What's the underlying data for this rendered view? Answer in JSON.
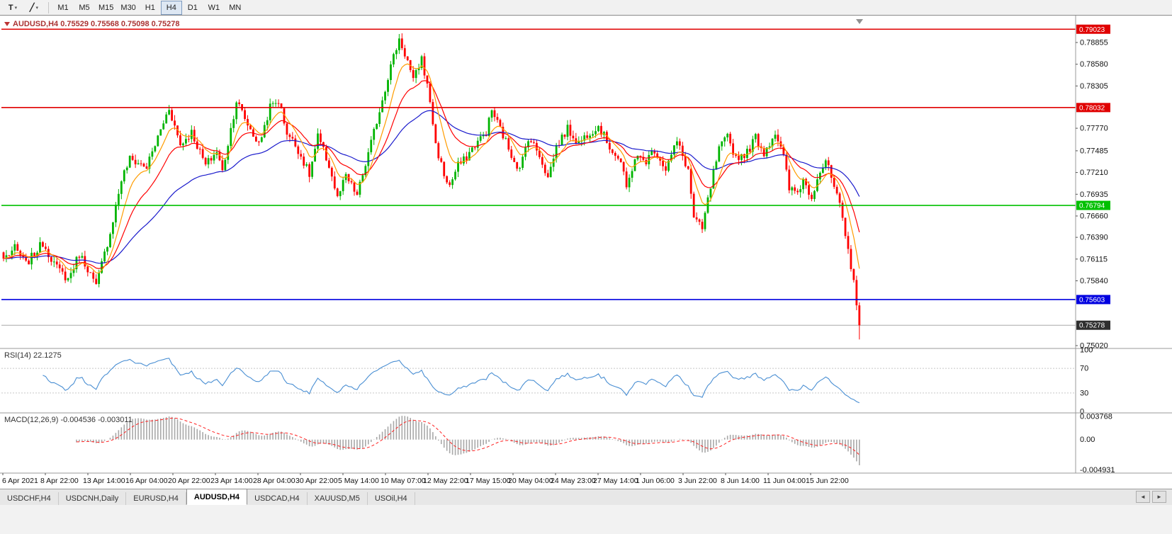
{
  "toolbar": {
    "tools": [
      {
        "id": "text-tool",
        "glyph": "T"
      },
      {
        "id": "drawing-tool",
        "glyph": "╱"
      }
    ],
    "caret": "▾",
    "timeframes": [
      "M1",
      "M5",
      "M15",
      "M30",
      "H1",
      "H4",
      "D1",
      "W1",
      "MN"
    ],
    "active_timeframe": "H4"
  },
  "tabs": {
    "items": [
      "USDCHF,H4",
      "USDCNH,Daily",
      "EURUSD,H4",
      "AUDUSD,H4",
      "USDCAD,H4",
      "XAUUSD,M5",
      "USOil,H4"
    ],
    "active": "AUDUSD,H4",
    "arrows": {
      "prev": "◄",
      "next": "►"
    }
  },
  "chart_data": {
    "type": "candlestick",
    "symbol": "AUDUSD",
    "timeframe": "H4",
    "title": "AUDUSD,H4 0.75529 0.75568 0.75098 0.75278",
    "last_candle": {
      "open": 0.75529,
      "high": 0.75568,
      "low": 0.75098,
      "close": 0.75278
    },
    "ylim": [
      0.75003,
      0.79142
    ],
    "candle_count": 306,
    "up_color": "#00b400",
    "down_color": "#ff0000",
    "close_path_anchors": [
      [
        0,
        0.7612
      ],
      [
        4,
        0.7625
      ],
      [
        8,
        0.7605
      ],
      [
        14,
        0.7632
      ],
      [
        19,
        0.76
      ],
      [
        23,
        0.7586
      ],
      [
        27,
        0.7618
      ],
      [
        30,
        0.76
      ],
      [
        33,
        0.7576
      ],
      [
        35,
        0.7605
      ],
      [
        38,
        0.7645
      ],
      [
        42,
        0.7712
      ],
      [
        45,
        0.7738
      ],
      [
        51,
        0.7728
      ],
      [
        54,
        0.7756
      ],
      [
        59,
        0.7803
      ],
      [
        63,
        0.7756
      ],
      [
        67,
        0.7772
      ],
      [
        72,
        0.773
      ],
      [
        76,
        0.7748
      ],
      [
        78,
        0.7722
      ],
      [
        83,
        0.7812
      ],
      [
        87,
        0.7782
      ],
      [
        91,
        0.7756
      ],
      [
        95,
        0.7804
      ],
      [
        98,
        0.7812
      ],
      [
        101,
        0.7772
      ],
      [
        105,
        0.775
      ],
      [
        109,
        0.7718
      ],
      [
        112,
        0.7766
      ],
      [
        116,
        0.773
      ],
      [
        119,
        0.7688
      ],
      [
        122,
        0.7716
      ],
      [
        126,
        0.7692
      ],
      [
        130,
        0.7744
      ],
      [
        134,
        0.78
      ],
      [
        138,
        0.7856
      ],
      [
        141,
        0.789
      ],
      [
        144,
        0.7862
      ],
      [
        146,
        0.7836
      ],
      [
        149,
        0.7866
      ],
      [
        152,
        0.7812
      ],
      [
        154,
        0.7756
      ],
      [
        157,
        0.7718
      ],
      [
        159,
        0.7704
      ],
      [
        162,
        0.773
      ],
      [
        164,
        0.7736
      ],
      [
        168,
        0.7756
      ],
      [
        172,
        0.7772
      ],
      [
        174,
        0.78
      ],
      [
        177,
        0.7776
      ],
      [
        181,
        0.7744
      ],
      [
        184,
        0.7724
      ],
      [
        187,
        0.7766
      ],
      [
        191,
        0.7744
      ],
      [
        194,
        0.7714
      ],
      [
        197,
        0.7754
      ],
      [
        201,
        0.7776
      ],
      [
        205,
        0.7758
      ],
      [
        208,
        0.777
      ],
      [
        212,
        0.778
      ],
      [
        216,
        0.7754
      ],
      [
        220,
        0.7734
      ],
      [
        222,
        0.77
      ],
      [
        225,
        0.774
      ],
      [
        229,
        0.7736
      ],
      [
        232,
        0.775
      ],
      [
        236,
        0.7726
      ],
      [
        240,
        0.776
      ],
      [
        244,
        0.7724
      ],
      [
        246,
        0.7664
      ],
      [
        249,
        0.7648
      ],
      [
        250,
        0.7668
      ],
      [
        253,
        0.772
      ],
      [
        255,
        0.775
      ],
      [
        258,
        0.7766
      ],
      [
        261,
        0.774
      ],
      [
        265,
        0.7746
      ],
      [
        268,
        0.7766
      ],
      [
        271,
        0.7746
      ],
      [
        275,
        0.7772
      ],
      [
        278,
        0.774
      ],
      [
        280,
        0.77
      ],
      [
        283,
        0.7696
      ],
      [
        285,
        0.7712
      ],
      [
        288,
        0.769
      ],
      [
        290,
        0.7716
      ],
      [
        293,
        0.7736
      ],
      [
        295,
        0.7714
      ],
      [
        298,
        0.7678
      ],
      [
        300,
        0.764
      ],
      [
        303,
        0.7585
      ],
      [
        304,
        0.7553
      ],
      [
        305,
        0.75278
      ]
    ],
    "horizontal_levels": [
      {
        "price": 0.79023,
        "label": "0.79023",
        "color": "#e00000"
      },
      {
        "price": 0.78032,
        "label": "0.78032",
        "color": "#e00000"
      },
      {
        "price": 0.76794,
        "label": "0.76794",
        "color": "#00c000"
      },
      {
        "price": 0.75603,
        "label": "0.75603",
        "color": "#0000e0"
      }
    ],
    "bid": {
      "price": 0.75278,
      "label": "0.75278",
      "line_color": "#a8a8a8",
      "badge_color": "#2f2f2f"
    },
    "price_axis_ticks": [
      "0.78855",
      "0.78580",
      "0.78305",
      "0.77770",
      "0.77485",
      "0.77210",
      "0.76935",
      "0.76660",
      "0.76390",
      "0.76115",
      "0.75840",
      "0.75020"
    ],
    "time_axis_labels": [
      "6 Apr 2021",
      "8 Apr 22:00",
      "13 Apr 14:00",
      "16 Apr 04:00",
      "20 Apr 22:00",
      "23 Apr 14:00",
      "28 Apr 04:00",
      "30 Apr 22:00",
      "5 May 14:00",
      "10 May 07:00",
      "12 May 22:00",
      "17 May 15:00",
      "20 May 04:00",
      "24 May 23:00",
      "27 May 14:00",
      "1 Jun 06:00",
      "3 Jun 22:00",
      "8 Jun 14:00",
      "11 Jun 04:00",
      "15 Jun 22:00"
    ],
    "moving_averages": [
      {
        "period": 8,
        "color": "#ff9c00",
        "name": "ma-fast"
      },
      {
        "period": 18,
        "color": "#ff0000",
        "name": "ma-mid"
      },
      {
        "period": 48,
        "color": "#1a1acc",
        "name": "ma-slow"
      }
    ],
    "indicators": {
      "rsi": {
        "label": "RSI(14) 22.1275",
        "period": 14,
        "current": 22.1275,
        "axis": [
          100,
          70,
          30,
          0
        ],
        "dashed_levels": [
          70,
          30
        ],
        "line_color": "#4a8fd3"
      },
      "macd": {
        "label": "MACD(12,26,9) -0.004536 -0.003011",
        "fast": 12,
        "slow": 26,
        "signal": 9,
        "current_macd": -0.004536,
        "current_signal": -0.003011,
        "axis": [
          {
            "label": "0.003768",
            "value": 0.003768
          },
          {
            "label": "0.00",
            "value": 0
          },
          {
            "label": "-0.004931",
            "value": -0.004931
          }
        ],
        "scale": [
          -0.0052,
          0.0041
        ],
        "hist_color": "#a8a8a8",
        "signal_color": "#ff2020"
      }
    }
  }
}
